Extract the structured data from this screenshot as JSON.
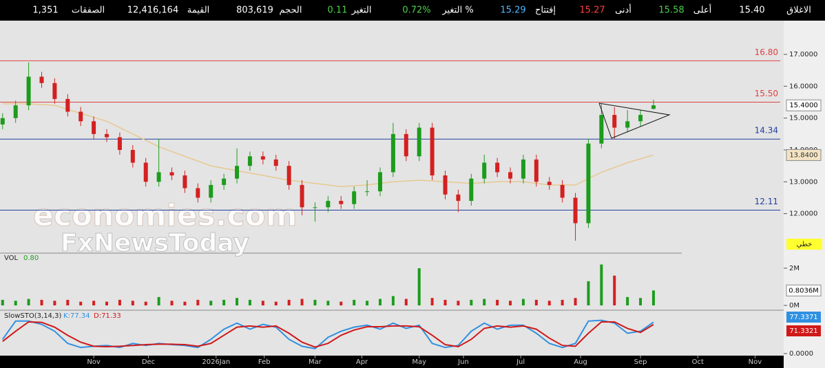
{
  "header": {
    "items": [
      {
        "label": "الاغلاق",
        "value": "15.40",
        "color": "#ffffff"
      },
      {
        "label": "أعلى",
        "value": "15.58",
        "color": "#4cd24c"
      },
      {
        "label": "أدنى",
        "value": "15.27",
        "color": "#ff4040"
      },
      {
        "label": "إفتتاح",
        "value": "15.29",
        "color": "#4fb8ff"
      },
      {
        "label": "التغير %",
        "value": "0.72%",
        "color": "#4cd24c"
      },
      {
        "label": "التغير",
        "value": "0.11",
        "color": "#4cd24c"
      },
      {
        "label": "الحجم",
        "value": "803,619",
        "color": "#ffffff"
      },
      {
        "label": "القيمة",
        "value": "12,416,164",
        "color": "#ffffff"
      },
      {
        "label": "الصفقات",
        "value": "1,351",
        "color": "#ffffff"
      }
    ]
  },
  "watermark": {
    "line1": "economies.com",
    "line2": "FxNewsToday"
  },
  "chart_data": [
    {
      "type": "candlestick",
      "x": [
        0,
        5,
        10,
        15,
        20,
        25,
        30,
        35,
        40,
        45,
        50,
        55,
        60,
        65,
        70,
        75,
        80,
        85,
        90,
        95,
        100,
        105,
        110,
        115,
        120,
        125,
        130,
        135,
        140,
        145,
        150,
        155,
        160,
        165,
        170,
        175,
        180,
        185,
        190,
        195,
        200,
        205,
        210,
        215,
        220,
        225,
        230,
        235,
        240,
        245,
        250
      ],
      "open": [
        14.8,
        15.0,
        15.4,
        16.3,
        16.1,
        15.6,
        15.2,
        14.9,
        14.5,
        14.4,
        14.0,
        13.6,
        13.0,
        13.3,
        13.2,
        12.8,
        12.5,
        12.9,
        13.1,
        13.5,
        13.8,
        13.7,
        13.5,
        12.9,
        12.2,
        12.2,
        12.4,
        12.3,
        12.7,
        12.7,
        13.3,
        14.5,
        13.8,
        14.7,
        13.2,
        12.6,
        12.4,
        13.1,
        13.6,
        13.3,
        13.1,
        13.7,
        13.0,
        12.9,
        12.5,
        11.7,
        14.2,
        15.1,
        14.7,
        14.9,
        15.29
      ],
      "high": [
        15.15,
        15.55,
        16.75,
        16.45,
        16.25,
        15.75,
        15.35,
        15.05,
        14.65,
        14.55,
        14.15,
        13.75,
        14.35,
        13.45,
        13.35,
        12.95,
        13.05,
        13.25,
        14.05,
        13.95,
        13.95,
        13.85,
        13.65,
        13.05,
        12.35,
        12.55,
        12.55,
        12.85,
        13.05,
        13.45,
        14.85,
        14.65,
        14.85,
        14.85,
        13.35,
        12.75,
        13.25,
        13.85,
        13.75,
        13.45,
        13.85,
        13.85,
        13.15,
        13.05,
        12.65,
        14.35,
        15.45,
        15.35,
        15.25,
        15.25,
        15.58
      ],
      "low": [
        14.65,
        14.85,
        15.25,
        15.95,
        15.45,
        15.05,
        14.75,
        14.35,
        14.25,
        13.85,
        13.45,
        12.85,
        12.85,
        13.05,
        12.65,
        12.35,
        12.35,
        12.75,
        12.95,
        13.35,
        13.55,
        13.35,
        12.75,
        11.95,
        11.75,
        12.05,
        12.15,
        12.15,
        12.55,
        12.55,
        13.15,
        13.65,
        13.65,
        13.05,
        12.45,
        12.05,
        12.25,
        12.95,
        13.15,
        12.95,
        12.95,
        12.85,
        12.75,
        12.35,
        11.15,
        11.55,
        14.05,
        14.35,
        14.55,
        14.75,
        15.27
      ],
      "close": [
        15.0,
        15.4,
        16.3,
        16.1,
        15.6,
        15.2,
        14.9,
        14.5,
        14.4,
        14.0,
        13.6,
        13.0,
        13.3,
        13.2,
        12.8,
        12.5,
        12.9,
        13.1,
        13.5,
        13.8,
        13.7,
        13.5,
        12.9,
        12.2,
        12.2,
        12.4,
        12.3,
        12.7,
        12.7,
        13.3,
        14.5,
        13.8,
        14.7,
        13.2,
        12.6,
        12.4,
        13.1,
        13.6,
        13.3,
        13.1,
        13.7,
        13.0,
        12.9,
        12.5,
        11.7,
        14.2,
        15.1,
        14.7,
        14.9,
        15.1,
        15.4
      ],
      "up_color": "#1c9c1c",
      "down_color": "#d42020",
      "ma": {
        "x": [
          0,
          10,
          20,
          30,
          40,
          50,
          60,
          70,
          80,
          90,
          100,
          110,
          120,
          130,
          140,
          150,
          160,
          170,
          180,
          190,
          200,
          210,
          220,
          230,
          240,
          250
        ],
        "values": [
          15.45,
          15.45,
          15.4,
          15.15,
          14.9,
          14.5,
          14.1,
          13.8,
          13.5,
          13.35,
          13.2,
          13.05,
          12.95,
          12.85,
          12.9,
          13.0,
          13.05,
          13.0,
          12.95,
          13.0,
          13.0,
          12.9,
          12.9,
          13.3,
          13.6,
          13.84
        ],
        "color": "#e8c890"
      },
      "levels": [
        {
          "value": 16.8,
          "label": "16.80",
          "color": "#e04040"
        },
        {
          "value": 15.5,
          "label": "15.50",
          "color": "#e04040"
        },
        {
          "value": 14.34,
          "label": "14.34",
          "color": "#2040a0"
        },
        {
          "value": 12.11,
          "label": "12.11",
          "color": "#2040a0"
        }
      ],
      "last_price": {
        "value": 15.4,
        "label": "15.4000"
      },
      "ma_last": {
        "value": 13.84,
        "label": "13.8400"
      },
      "scale_mode": "خطي",
      "xlim": [
        -1,
        300
      ],
      "xticks": [
        {
          "value": 35,
          "label": "Nov"
        },
        {
          "value": 56,
          "label": "Dec"
        },
        {
          "value": 82,
          "label": "2026Jan"
        },
        {
          "value": 100.5,
          "label": "Feb"
        },
        {
          "value": 120,
          "label": "Mar"
        },
        {
          "value": 138,
          "label": "Apr"
        },
        {
          "value": 160,
          "label": "May"
        },
        {
          "value": 177,
          "label": "Jun"
        },
        {
          "value": 199,
          "label": "Jul"
        },
        {
          "value": 222,
          "label": "Aug"
        },
        {
          "value": 245,
          "label": "Sep"
        },
        {
          "value": 267,
          "label": "Oct"
        },
        {
          "value": 289,
          "label": "Nov"
        }
      ],
      "ylim": [
        10.76,
        18.06
      ],
      "yticks": [
        {
          "value": 12,
          "label": "12.0000"
        },
        {
          "value": 13,
          "label": "13.0000"
        },
        {
          "value": 14,
          "label": "14.0000"
        },
        {
          "value": 15,
          "label": "15.0000"
        },
        {
          "value": 16,
          "label": "16.0000"
        },
        {
          "value": 17,
          "label": "17.0000"
        }
      ]
    },
    {
      "type": "bar",
      "title": "VOL",
      "title_value": "0.80",
      "x": [
        0,
        5,
        10,
        15,
        20,
        25,
        30,
        35,
        40,
        45,
        50,
        55,
        60,
        65,
        70,
        75,
        80,
        85,
        90,
        95,
        100,
        105,
        110,
        115,
        120,
        125,
        130,
        135,
        140,
        145,
        150,
        155,
        160,
        165,
        170,
        175,
        180,
        185,
        190,
        195,
        200,
        205,
        210,
        215,
        220,
        225,
        230,
        235,
        240,
        245,
        250
      ],
      "values": [
        0.3,
        0.25,
        0.35,
        0.3,
        0.25,
        0.3,
        0.2,
        0.25,
        0.2,
        0.3,
        0.25,
        0.2,
        0.45,
        0.25,
        0.2,
        0.3,
        0.25,
        0.3,
        0.4,
        0.3,
        0.25,
        0.2,
        0.3,
        0.35,
        0.3,
        0.25,
        0.2,
        0.3,
        0.25,
        0.35,
        0.5,
        0.35,
        2.0,
        0.4,
        0.3,
        0.25,
        0.3,
        0.35,
        0.3,
        0.25,
        0.35,
        0.3,
        0.25,
        0.3,
        0.4,
        1.3,
        2.2,
        1.6,
        0.45,
        0.4,
        0.8036
      ],
      "last": {
        "value": 0.8036,
        "label": "0.8036M"
      },
      "ylim": [
        0,
        2.7
      ],
      "yticks": [
        {
          "value": 0,
          "label": "0M"
        },
        {
          "value": 2,
          "label": "2M"
        }
      ]
    },
    {
      "type": "line",
      "title": "SlowSTO(3,14,3)",
      "x": [
        0,
        5,
        10,
        15,
        20,
        25,
        30,
        35,
        40,
        45,
        50,
        55,
        60,
        65,
        70,
        75,
        80,
        85,
        90,
        95,
        100,
        105,
        110,
        115,
        120,
        125,
        130,
        135,
        140,
        145,
        150,
        155,
        160,
        165,
        170,
        175,
        180,
        185,
        190,
        195,
        200,
        205,
        210,
        215,
        220,
        225,
        230,
        235,
        240,
        245,
        250
      ],
      "series": [
        {
          "name": "K:77.34",
          "color": "#3090e0",
          "values": [
            35,
            80,
            80,
            72,
            55,
            25,
            15,
            18,
            20,
            15,
            25,
            20,
            25,
            22,
            20,
            15,
            35,
            60,
            75,
            60,
            72,
            65,
            35,
            18,
            12,
            40,
            55,
            65,
            70,
            60,
            75,
            62,
            70,
            25,
            15,
            20,
            55,
            75,
            60,
            70,
            70,
            50,
            25,
            15,
            25,
            80,
            82,
            75,
            50,
            55,
            77.34
          ],
          "last": 77.3371
        },
        {
          "name": "D:71.33",
          "color": "#d01818",
          "values": [
            30,
            55,
            78,
            77,
            65,
            45,
            28,
            18,
            17,
            18,
            20,
            22,
            23,
            23,
            22,
            18,
            25,
            45,
            65,
            68,
            65,
            68,
            50,
            28,
            16,
            25,
            45,
            58,
            66,
            66,
            68,
            68,
            66,
            45,
            22,
            17,
            35,
            62,
            68,
            65,
            68,
            60,
            38,
            20,
            18,
            50,
            78,
            78,
            62,
            52,
            71.33
          ],
          "last": 71.3321
        }
      ],
      "ylim": [
        0,
        100
      ],
      "yticks": [
        {
          "value": 0,
          "label": "0.0000"
        }
      ]
    }
  ]
}
